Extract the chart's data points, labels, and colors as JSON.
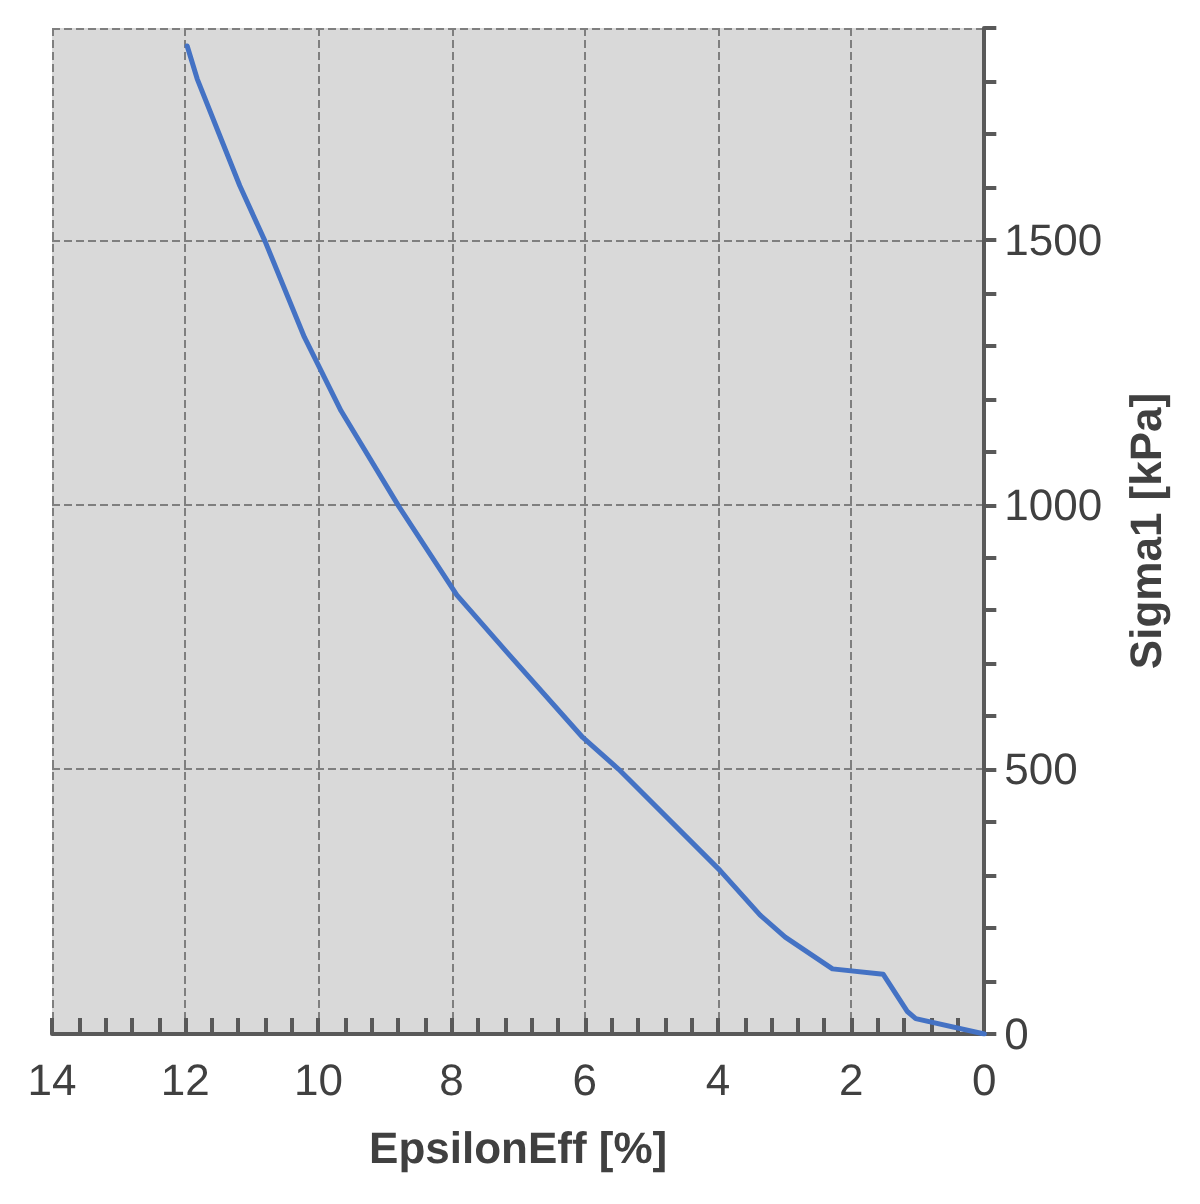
{
  "chart_data": {
    "type": "line",
    "xlabel": "EpsilonEff [%]",
    "ylabel": "Sigma1 [kPa]",
    "x": [
      0,
      1.03,
      1.16,
      1.52,
      2.28,
      2.99,
      3.37,
      3.97,
      5.49,
      6.03,
      7.12,
      7.92,
      8.79,
      9.66,
      10.21,
      10.8,
      11.18,
      11.51,
      11.82,
      11.97
    ],
    "series": [
      {
        "color": "#4472c4",
        "values": [
          0,
          29,
          43,
          113,
          123,
          183,
          225,
          309,
          500,
          560,
          714,
          829,
          996,
          1177,
          1316,
          1497,
          1602,
          1706,
          1804,
          1866
        ]
      }
    ],
    "xlim": [
      14,
      0
    ],
    "ylim": [
      0,
      1900
    ],
    "xticks": [
      0,
      {
        "value": 0.4,
        "label": null
      },
      {
        "value": 0.8,
        "label": null
      },
      {
        "value": 1.2,
        "label": null
      },
      {
        "value": 1.6,
        "label": null
      },
      2,
      {
        "value": 2.4,
        "label": null
      },
      {
        "value": 2.8,
        "label": null
      },
      {
        "value": 3.2,
        "label": null
      },
      {
        "value": 3.6,
        "label": null
      },
      4,
      {
        "value": 4.4,
        "label": null
      },
      {
        "value": 4.8,
        "label": null
      },
      {
        "value": 5.2,
        "label": null
      },
      {
        "value": 5.6,
        "label": null
      },
      6,
      {
        "value": 6.4,
        "label": null
      },
      {
        "value": 6.8,
        "label": null
      },
      {
        "value": 7.2,
        "label": null
      },
      {
        "value": 7.6,
        "label": null
      },
      8,
      {
        "value": 8.4,
        "label": null
      },
      {
        "value": 8.8,
        "label": null
      },
      {
        "value": 9.2,
        "label": null
      },
      {
        "value": 9.6,
        "label": null
      },
      10,
      {
        "value": 10.4,
        "label": null
      },
      {
        "value": 10.8,
        "label": null
      },
      {
        "value": 11.2,
        "label": null
      },
      {
        "value": 11.6,
        "label": null
      },
      12,
      {
        "value": 12.4,
        "label": null
      },
      {
        "value": 12.8,
        "label": null
      },
      {
        "value": 13.2,
        "label": null
      },
      {
        "value": 13.6,
        "label": null
      },
      14
    ],
    "yticks": [
      0,
      {
        "value": 100,
        "label": null
      },
      {
        "value": 200,
        "label": null
      },
      {
        "value": 300,
        "label": null
      },
      {
        "value": 400,
        "label": null
      },
      500,
      {
        "value": 600,
        "label": null
      },
      {
        "value": 700,
        "label": null
      },
      {
        "value": 800,
        "label": null
      },
      {
        "value": 900,
        "label": null
      },
      1000,
      {
        "value": 1100,
        "label": null
      },
      {
        "value": 1200,
        "label": null
      },
      {
        "value": 1300,
        "label": null
      },
      {
        "value": 1400,
        "label": null
      },
      1500,
      {
        "value": 1600,
        "label": null
      },
      {
        "value": 1700,
        "label": null
      },
      {
        "value": 1800,
        "label": null
      },
      {
        "value": 1900,
        "label": null
      }
    ],
    "grid": true,
    "marker": "none",
    "line_style": "solid"
  }
}
